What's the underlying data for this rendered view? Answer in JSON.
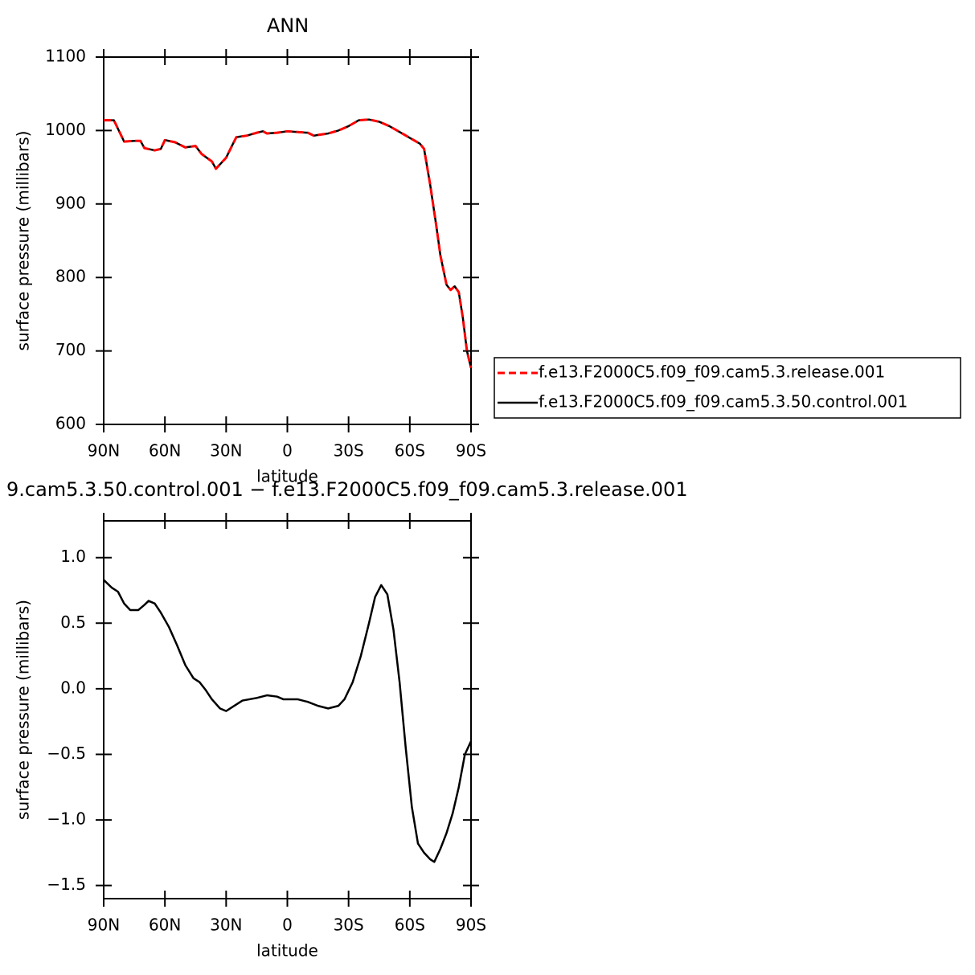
{
  "chart_data": [
    {
      "type": "line",
      "title": "ANN",
      "xlabel": "latitude",
      "ylabel": "surface pressure (millibars)",
      "xlim": [
        90,
        -90
      ],
      "ylim": [
        600,
        1100
      ],
      "xticks": [
        {
          "value": 90,
          "label": "90N"
        },
        {
          "value": 60,
          "label": "60N"
        },
        {
          "value": 30,
          "label": "30N"
        },
        0,
        {
          "value": -30,
          "label": "30S"
        },
        {
          "value": -60,
          "label": "60S"
        },
        {
          "value": -90,
          "label": "90S"
        }
      ],
      "yticks": [
        600,
        700,
        800,
        900,
        1000,
        1100
      ],
      "x": [
        90,
        85,
        80,
        75,
        72,
        70,
        65,
        62,
        60,
        55,
        50,
        45,
        42,
        37,
        35,
        30,
        27,
        25,
        20,
        15,
        12,
        10,
        5,
        0,
        -5,
        -10,
        -13,
        -15,
        -20,
        -25,
        -30,
        -35,
        -40,
        -45,
        -50,
        -55,
        -60,
        -65,
        -67,
        -70,
        -73,
        -75,
        -78,
        -80,
        -82,
        -84,
        -86,
        -88,
        -90
      ],
      "series": [
        {
          "name": "f.e13.F2000C5.f09_f09.cam5.3.release.001",
          "color": "#ff0000",
          "linestyle": "dashed",
          "values": [
            1014,
            1014,
            985,
            986,
            986,
            976,
            973,
            975,
            987,
            984,
            977,
            979,
            968,
            958,
            948,
            963,
            980,
            991,
            993,
            997,
            999,
            996,
            997,
            999,
            998,
            997,
            993,
            994,
            996,
            1000,
            1006,
            1014,
            1015,
            1012,
            1006,
            998,
            990,
            982,
            975,
            926,
            870,
            830,
            790,
            783,
            788,
            780,
            745,
            700,
            677
          ]
        },
        {
          "name": "f.e13.F2000C5.f09_f09.cam5.3.50.control.001",
          "color": "#000000",
          "linestyle": "solid",
          "values": [
            1014,
            1014,
            985,
            986,
            986,
            976,
            973,
            975,
            987,
            984,
            977,
            979,
            968,
            958,
            948,
            963,
            980,
            991,
            993,
            997,
            999,
            996,
            997,
            999,
            998,
            997,
            993,
            994,
            996,
            1000,
            1006,
            1014,
            1015,
            1012,
            1006,
            998,
            990,
            982,
            975,
            926,
            870,
            830,
            790,
            783,
            788,
            780,
            745,
            700,
            677
          ]
        }
      ]
    },
    {
      "type": "line",
      "title": "9.cam5.3.50.control.001 − f.e13.F2000C5.f09_f09.cam5.3.release.001",
      "xlabel": "latitude",
      "ylabel": "surface pressure (millibars)",
      "xlim": [
        90,
        -90
      ],
      "ylim": [
        -1.6,
        1.28
      ],
      "xticks": [
        {
          "value": 90,
          "label": "90N"
        },
        {
          "value": 60,
          "label": "60N"
        },
        {
          "value": 30,
          "label": "30N"
        },
        0,
        {
          "value": -30,
          "label": "30S"
        },
        {
          "value": -60,
          "label": "60S"
        },
        {
          "value": -90,
          "label": "90S"
        }
      ],
      "yticks": [
        {
          "value": -1.5,
          "label": "−1.5"
        },
        {
          "value": -1,
          "label": "−1.0"
        },
        {
          "value": -0.5,
          "label": "−0.5"
        },
        {
          "value": 0,
          "label": "0.0"
        },
        0.5,
        {
          "value": 1,
          "label": "1.0"
        }
      ],
      "x": [
        90,
        86,
        83,
        80,
        77,
        73,
        70,
        68,
        65,
        62,
        58,
        54,
        50,
        46,
        43,
        40,
        37,
        33,
        30,
        26,
        22,
        15,
        10,
        5,
        2,
        0,
        -5,
        -10,
        -15,
        -20,
        -25,
        -28,
        -32,
        -36,
        -40,
        -43,
        -46,
        -49,
        -52,
        -55,
        -58,
        -61,
        -64,
        -67,
        -70,
        -72,
        -75,
        -78,
        -81,
        -84,
        -87,
        -90
      ],
      "series": [
        {
          "color": "#000000",
          "linestyle": "solid",
          "values": [
            0.83,
            0.77,
            0.74,
            0.65,
            0.6,
            0.6,
            0.64,
            0.67,
            0.65,
            0.58,
            0.47,
            0.33,
            0.18,
            0.08,
            0.05,
            -0.01,
            -0.08,
            -0.15,
            -0.17,
            -0.13,
            -0.09,
            -0.07,
            -0.05,
            -0.06,
            -0.08,
            -0.08,
            -0.08,
            -0.1,
            -0.13,
            -0.15,
            -0.13,
            -0.08,
            0.05,
            0.25,
            0.5,
            0.7,
            0.79,
            0.72,
            0.45,
            0.05,
            -0.45,
            -0.9,
            -1.18,
            -1.25,
            -1.3,
            -1.32,
            -1.22,
            -1.1,
            -0.95,
            -0.75,
            -0.5,
            -0.4
          ]
        }
      ]
    }
  ]
}
